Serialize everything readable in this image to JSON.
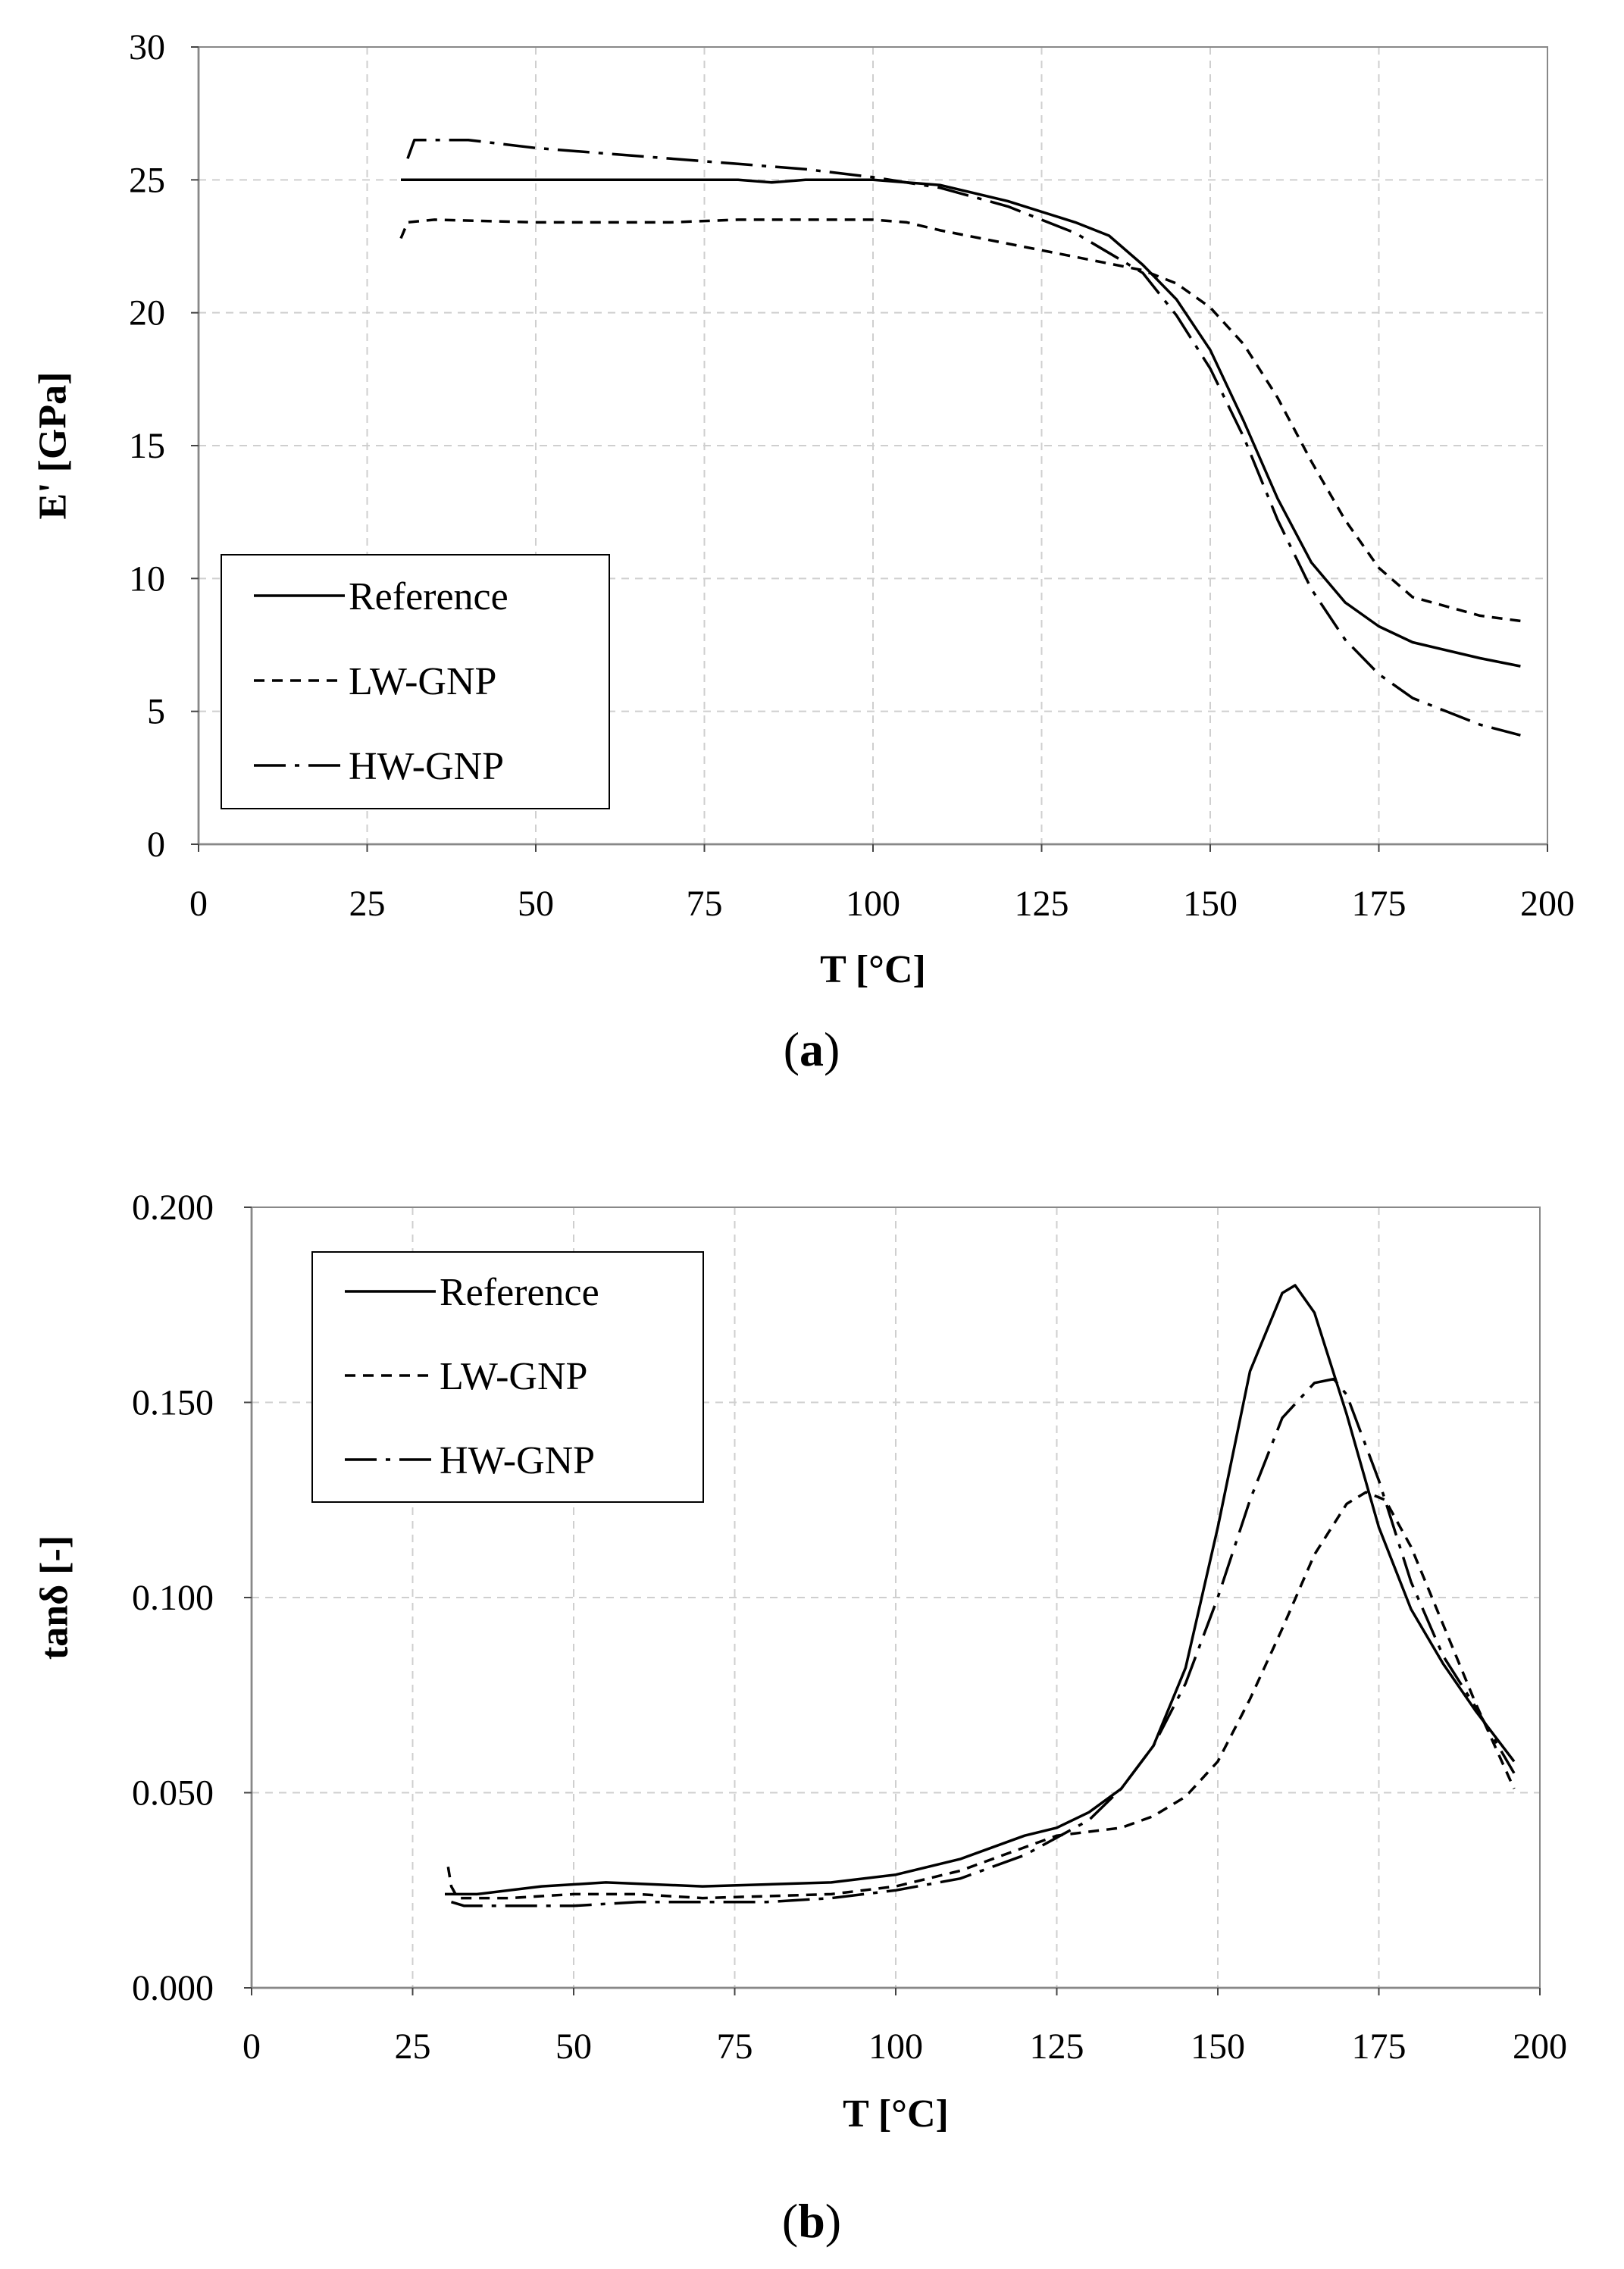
{
  "chart_data": [
    {
      "id": "a",
      "type": "line",
      "caption_letter": "a",
      "xlabel": "T [°C]",
      "ylabel": "E' [GPa]",
      "xlim": [
        0,
        200
      ],
      "ylim": [
        0,
        30
      ],
      "xticks": [
        0,
        25,
        50,
        75,
        100,
        125,
        150,
        175,
        200
      ],
      "yticks": [
        0,
        5,
        10,
        15,
        20,
        25,
        30
      ],
      "ytick_labels": [
        "0",
        "5",
        "10",
        "15",
        "20",
        "25",
        "30"
      ],
      "grid": true,
      "legend_position": "bottom-left",
      "series": [
        {
          "name": "Reference",
          "style": "solid",
          "x": [
            30,
            40,
            60,
            80,
            85,
            90,
            100,
            110,
            120,
            130,
            135,
            140,
            145,
            150,
            155,
            160,
            165,
            170,
            175,
            180,
            190,
            196
          ],
          "y": [
            25,
            25,
            25,
            25,
            24.9,
            25,
            25,
            24.8,
            24.2,
            23.4,
            22.9,
            21.8,
            20.5,
            18.6,
            15.9,
            13.0,
            10.6,
            9.1,
            8.2,
            7.6,
            7.0,
            6.7
          ]
        },
        {
          "name": "LW-GNP",
          "style": "dashed",
          "x": [
            30,
            31,
            35,
            50,
            70,
            80,
            90,
            100,
            105,
            110,
            120,
            130,
            140,
            145,
            150,
            155,
            160,
            165,
            170,
            175,
            180,
            190,
            196
          ],
          "y": [
            22.8,
            23.4,
            23.5,
            23.4,
            23.4,
            23.5,
            23.5,
            23.5,
            23.4,
            23.1,
            22.6,
            22.1,
            21.6,
            21.1,
            20.2,
            18.8,
            16.8,
            14.4,
            12.2,
            10.4,
            9.3,
            8.6,
            8.4
          ]
        },
        {
          "name": "HW-GNP",
          "style": "dashdot",
          "x": [
            31,
            32,
            40,
            50,
            60,
            70,
            80,
            90,
            100,
            110,
            120,
            130,
            140,
            145,
            150,
            155,
            160,
            165,
            170,
            175,
            180,
            190,
            196
          ],
          "y": [
            25.8,
            26.5,
            26.5,
            26.2,
            26.0,
            25.8,
            25.6,
            25.4,
            25.1,
            24.7,
            24.0,
            23.0,
            21.5,
            19.9,
            17.9,
            15.3,
            12.2,
            9.6,
            7.7,
            6.4,
            5.5,
            4.5,
            4.1
          ]
        }
      ]
    },
    {
      "id": "b",
      "type": "line",
      "caption_letter": "b",
      "xlabel": "T [°C]",
      "ylabel": "tanδ [-]",
      "xlim": [
        0,
        200
      ],
      "ylim": [
        0,
        0.2
      ],
      "xticks": [
        0,
        25,
        50,
        75,
        100,
        125,
        150,
        175,
        200
      ],
      "yticks": [
        0,
        0.05,
        0.1,
        0.15,
        0.2
      ],
      "ytick_labels": [
        "0.000",
        "0.050",
        "0.100",
        "0.150",
        "0.200"
      ],
      "grid": true,
      "legend_position": "top-left",
      "series": [
        {
          "name": "Reference",
          "style": "solid",
          "x": [
            30,
            31,
            35,
            45,
            55,
            70,
            90,
            100,
            110,
            120,
            125,
            130,
            135,
            140,
            145,
            150,
            155,
            160,
            162,
            165,
            170,
            175,
            180,
            185,
            190,
            196
          ],
          "y": [
            0.024,
            0.024,
            0.024,
            0.026,
            0.027,
            0.026,
            0.027,
            0.029,
            0.033,
            0.039,
            0.041,
            0.045,
            0.051,
            0.062,
            0.082,
            0.118,
            0.158,
            0.178,
            0.18,
            0.173,
            0.147,
            0.118,
            0.097,
            0.083,
            0.071,
            0.058
          ]
        },
        {
          "name": "LW-GNP",
          "style": "dashed",
          "x": [
            30.5,
            31,
            32,
            40,
            50,
            60,
            70,
            90,
            100,
            110,
            120,
            125,
            130,
            135,
            140,
            145,
            150,
            155,
            160,
            165,
            170,
            173,
            176,
            180,
            185,
            190,
            196
          ],
          "y": [
            0.031,
            0.026,
            0.023,
            0.023,
            0.024,
            0.024,
            0.023,
            0.024,
            0.026,
            0.03,
            0.036,
            0.039,
            0.04,
            0.041,
            0.044,
            0.049,
            0.058,
            0.074,
            0.092,
            0.111,
            0.124,
            0.127,
            0.125,
            0.113,
            0.093,
            0.073,
            0.051
          ]
        },
        {
          "name": "HW-GNP",
          "style": "dashdot",
          "x": [
            31,
            33,
            40,
            50,
            60,
            70,
            80,
            90,
            100,
            110,
            120,
            130,
            135,
            140,
            145,
            150,
            155,
            160,
            165,
            168,
            170,
            175,
            180,
            185,
            190,
            196
          ],
          "y": [
            0.022,
            0.021,
            0.021,
            0.021,
            0.022,
            0.022,
            0.022,
            0.023,
            0.025,
            0.028,
            0.034,
            0.043,
            0.051,
            0.062,
            0.078,
            0.1,
            0.125,
            0.146,
            0.155,
            0.156,
            0.152,
            0.13,
            0.104,
            0.085,
            0.072,
            0.055
          ]
        }
      ]
    }
  ]
}
